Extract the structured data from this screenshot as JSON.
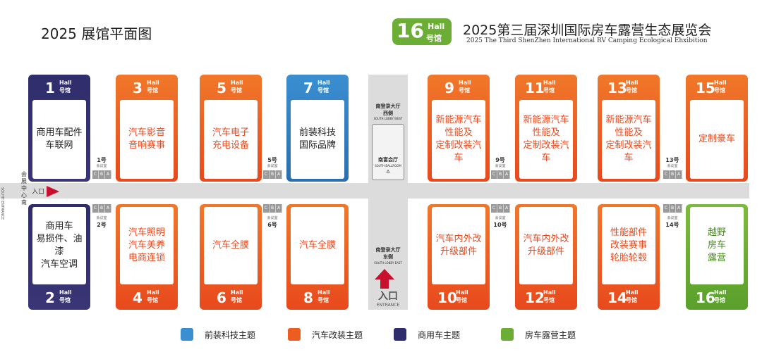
{
  "title": "2025 展馆平面图",
  "badge": {
    "number": "16",
    "hall_en": "Hall",
    "hall_cn": "号馆"
  },
  "expo": {
    "title_cn": "2025第三届深圳国际房车露营生态展览会",
    "title_en": "2025 The Third ShenZhen International RV Camping Ecological Ehxibition"
  },
  "colors": {
    "theme_blue": "#3a8fd1",
    "theme_orange": "#ec5d1f",
    "theme_purple": "#2f2d6b",
    "theme_green": "#6cae35"
  },
  "halls_top": [
    {
      "num": "1",
      "en": "Hall",
      "cn": "号馆",
      "lines": [
        "商用车配件",
        "车联网"
      ],
      "theme": "purple"
    },
    {
      "num": "3",
      "en": "Hall",
      "cn": "号馆",
      "lines": [
        "汽车影音",
        "音响赛事"
      ],
      "theme": "orange"
    },
    {
      "num": "5",
      "en": "Hall",
      "cn": "号馆",
      "lines": [
        "汽车电子",
        "充电设备"
      ],
      "theme": "orange"
    },
    {
      "num": "7",
      "en": "Hall",
      "cn": "号馆",
      "lines": [
        "前装科技",
        "国际品牌"
      ],
      "theme": "blue"
    },
    {
      "num": "9",
      "en": "Hall",
      "cn": "号馆",
      "lines": [
        "新能源汽车",
        "性能及",
        "定制改装汽车"
      ],
      "theme": "orange"
    },
    {
      "num": "11",
      "en": "Hall",
      "cn": "号馆",
      "lines": [
        "新能源汽车",
        "性能及",
        "定制改装汽车"
      ],
      "theme": "orange"
    },
    {
      "num": "13",
      "en": "Hall",
      "cn": "号馆",
      "lines": [
        "新能源汽车",
        "性能及",
        "定制改装汽车"
      ],
      "theme": "orange"
    },
    {
      "num": "15",
      "en": "Hall",
      "cn": "号馆",
      "lines": [
        "定制豪车"
      ],
      "theme": "orange"
    }
  ],
  "halls_bottom": [
    {
      "num": "2",
      "en": "Hall",
      "cn": "号馆",
      "lines": [
        "商用车",
        "易损件、油漆",
        "汽车空调"
      ],
      "theme": "purple"
    },
    {
      "num": "4",
      "en": "Hall",
      "cn": "号馆",
      "lines": [
        "汽车照明",
        "汽车美养",
        "电商连锁"
      ],
      "theme": "orange"
    },
    {
      "num": "6",
      "en": "Hall",
      "cn": "号馆",
      "lines": [
        "汽车全膜"
      ],
      "theme": "orange"
    },
    {
      "num": "8",
      "en": "Hall",
      "cn": "号馆",
      "lines": [
        "汽车全膜"
      ],
      "theme": "orange"
    },
    {
      "num": "10",
      "en": "Hall",
      "cn": "号馆",
      "lines": [
        "汽车内外改",
        "升级部件"
      ],
      "theme": "orange"
    },
    {
      "num": "12",
      "en": "Hall",
      "cn": "号馆",
      "lines": [
        "汽车内外改",
        "升级部件"
      ],
      "theme": "orange"
    },
    {
      "num": "14",
      "en": "Hall",
      "cn": "号馆",
      "lines": [
        "性能部件",
        "改装赛事",
        "轮胎轮毂"
      ],
      "theme": "orange"
    },
    {
      "num": "16",
      "en": "Hall",
      "cn": "号馆",
      "lines": [
        "越野",
        "房车",
        "露营"
      ],
      "theme": "green"
    }
  ],
  "meeting_rooms": {
    "letters": [
      "C",
      "B",
      "A"
    ],
    "label": "会议室",
    "top": [
      "1",
      "5",
      "9",
      "13"
    ],
    "bottom": [
      "2",
      "6",
      "10",
      "14"
    ]
  },
  "central": {
    "west_cn": "南登录大厅",
    "west_cn2": "西侧",
    "west_en": "SOUTH LOBBY WEST",
    "hall_cn": "南富会厅",
    "hall_en": "SOUTH BALLROOM",
    "hall_letter": "A",
    "east_cn": "南登录大厅",
    "east_cn2": "东侧",
    "east_en": "SOUTH LOBBY EAST",
    "entrance_cn": "入口",
    "entrance_en": "ENTRANCE"
  },
  "left_side": {
    "entry_cn": "入口",
    "vert_cn": "会展中心南",
    "vert_en": "SOUTH ENTRANCE"
  },
  "legend": [
    {
      "label": "前装科技主题",
      "theme": "blue"
    },
    {
      "label": "汽车改装主题",
      "theme": "orange"
    },
    {
      "label": "商用车主题",
      "theme": "purple"
    },
    {
      "label": "房车露营主题",
      "theme": "green"
    }
  ]
}
